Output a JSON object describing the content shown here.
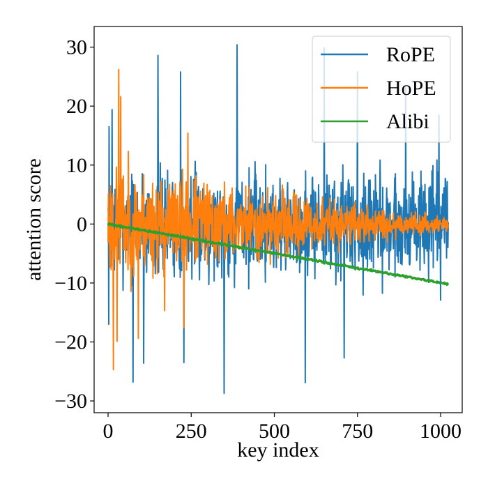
{
  "chart_data": {
    "type": "line",
    "title": "",
    "xlabel": "key index",
    "ylabel": "attention score",
    "xlim": [
      -42,
      1065
    ],
    "ylim": [
      -32,
      33.5
    ],
    "xticks": [
      0,
      250,
      500,
      750,
      1000
    ],
    "xtick_labels": [
      "0",
      "250",
      "500",
      "750",
      "1000"
    ],
    "yticks": [
      30,
      20,
      10,
      0,
      -10,
      -20,
      -30
    ],
    "ytick_labels": [
      "30",
      "20",
      "10",
      "0",
      "−10",
      "−20",
      "−30"
    ],
    "grid": false,
    "legend_position": "top-right",
    "n_points": 1024,
    "series": [
      {
        "name": "RoPE",
        "color": "#1f77b4",
        "pattern": "noise",
        "mean_start": 0,
        "mean_end": 0,
        "spread_start": 8,
        "spread_end": 8,
        "seed": 7,
        "peaks": [
          {
            "x": 3,
            "y": 16.5
          },
          {
            "x": 12,
            "y": 19.4
          },
          {
            "x": 2,
            "y": -17
          },
          {
            "x": 75,
            "y": -26.8
          },
          {
            "x": 107,
            "y": -23.6
          },
          {
            "x": 150,
            "y": 28.6
          },
          {
            "x": 218,
            "y": 25.8
          },
          {
            "x": 228,
            "y": -23.5
          },
          {
            "x": 349,
            "y": -28.7
          },
          {
            "x": 388,
            "y": 30.4
          },
          {
            "x": 593,
            "y": -26.9
          },
          {
            "x": 650,
            "y": 29.9
          },
          {
            "x": 710,
            "y": -22.7
          },
          {
            "x": 750,
            "y": 25.8
          },
          {
            "x": 895,
            "y": 23.2
          },
          {
            "x": 995,
            "y": 18.5
          },
          {
            "x": 1000,
            "y": -12.9
          },
          {
            "x": 1015,
            "y": 7.5
          },
          {
            "x": 1020,
            "y": 7.2
          }
        ]
      },
      {
        "name": "HoPE",
        "color": "#ff7f0e",
        "pattern": "noise",
        "mean_start": 0,
        "mean_end": 0,
        "spread_start": 8.5,
        "spread_end": 0.9,
        "seed": 23,
        "peaks": [
          {
            "x": 16,
            "y": -24.7
          },
          {
            "x": 32,
            "y": 26.2
          },
          {
            "x": 38,
            "y": 21.6
          },
          {
            "x": 27,
            "y": -19.9
          },
          {
            "x": 91,
            "y": -19.4
          },
          {
            "x": 170,
            "y": -14.7
          },
          {
            "x": 228,
            "y": -17.6
          },
          {
            "x": 240,
            "y": 15.4
          }
        ]
      },
      {
        "name": "Alibi",
        "color": "#2ca02c",
        "pattern": "linear",
        "mean_start": 0,
        "mean_end": -10.2,
        "spread_start": 0.18,
        "spread_end": 0.18,
        "seed": 41,
        "peaks": []
      }
    ]
  }
}
